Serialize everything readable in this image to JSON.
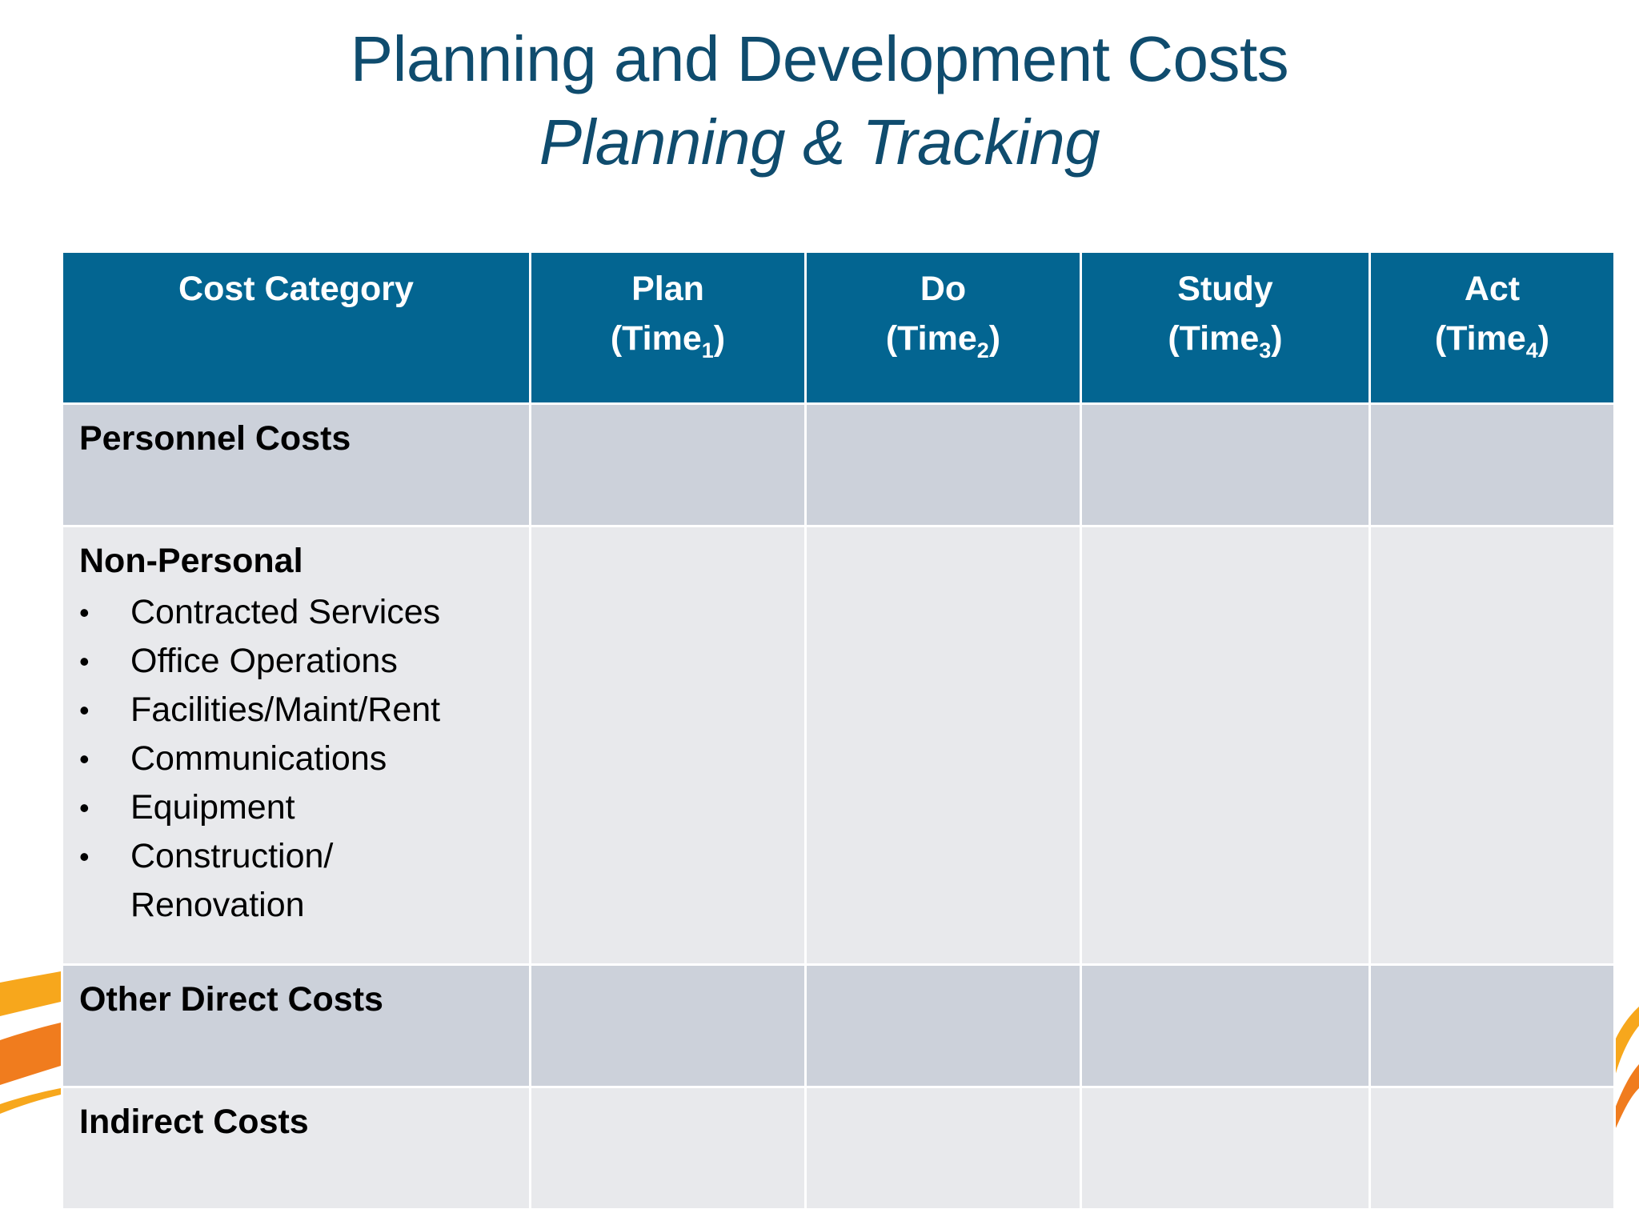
{
  "slide": {
    "title": "Planning and Development Costs",
    "subtitle": "Planning & Tracking"
  },
  "table": {
    "headers": [
      {
        "label": "Cost Category",
        "time_label": "",
        "subscript": ""
      },
      {
        "label": "Plan",
        "time_label": "(Time",
        "subscript": "1",
        "close": ")"
      },
      {
        "label": "Do",
        "time_label": "(Time",
        "subscript": "2",
        "close": ")"
      },
      {
        "label": "Study",
        "time_label": "(Time",
        "subscript": "3",
        "close": ")"
      },
      {
        "label": "Act",
        "time_label": "(Time",
        "subscript": "4",
        "close": ")"
      }
    ],
    "rows": [
      {
        "category": "Personnel Costs",
        "items": []
      },
      {
        "category": "Non-Personal",
        "items": [
          "Contracted Services",
          "Office Operations",
          "Facilities/Maint/Rent",
          "Communications",
          "Equipment",
          "Construction/ Renovation"
        ]
      },
      {
        "category": "Other Direct Costs",
        "items": []
      },
      {
        "category": "Indirect Costs",
        "items": []
      }
    ],
    "bullet_char": "•"
  },
  "colors": {
    "title": "#0f4c6e",
    "header_bg": "#036591",
    "row_dark": "#ccd1da",
    "row_light": "#e8e9ec",
    "accent_orange": "#f07c1e",
    "accent_yellow": "#f7a71c"
  }
}
